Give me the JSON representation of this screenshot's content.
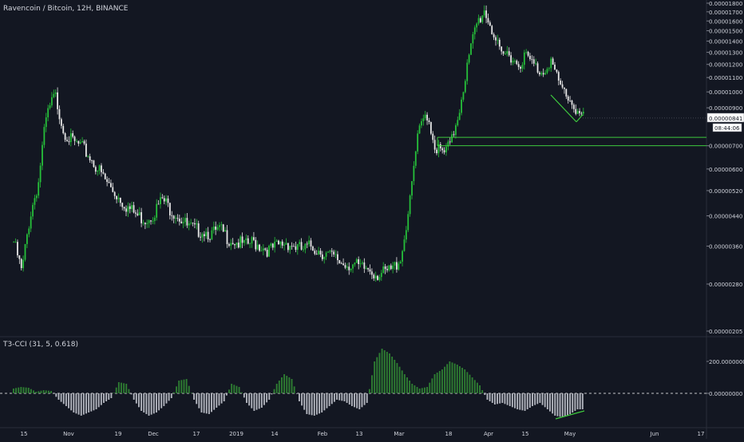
{
  "header": {
    "title": "Ravencoin / Bitcoin, 12H, BINANCE"
  },
  "indicator": {
    "title": "T3-CCI (31, 5, 0.618)"
  },
  "colors": {
    "background": "#131722",
    "up": "#26c13a",
    "down": "#e8e8e8",
    "line": "#3ec93e",
    "axis_text": "#d1d4dc",
    "hist_up": "#2e7d32",
    "hist_down": "#b2b5be"
  },
  "chart_data": [
    {
      "type": "candlestick",
      "title": "Ravencoin / Bitcoin, 12H, BINANCE",
      "x_ticks": [
        "15",
        "Nov",
        "19",
        "Dec",
        "17",
        "2019",
        "14",
        "Feb",
        "13",
        "Mar",
        "18",
        "Apr",
        "15",
        "May",
        "Jun",
        "17"
      ],
      "y_ticks": [
        "0.00001800",
        "0.00001700",
        "0.00001600",
        "0.00001500",
        "0.00001400",
        "0.00001300",
        "0.00001200",
        "0.00001100",
        "0.00001000",
        "0.00000900",
        "0.00000700",
        "0.00000600",
        "0.00000520",
        "0.00000440",
        "0.00000360",
        "0.00000280",
        "0.00000205"
      ],
      "ylim": [
        2.05e-06,
        1.8e-05
      ],
      "scale": "log",
      "close_series": [
        3.7e-06,
        3e-06,
        4.4e-06,
        5.5e-06,
        8.5e-06,
        9.8e-06,
        7.8e-06,
        7.2e-06,
        7e-06,
        6.6e-06,
        6.1e-06,
        5.6e-06,
        5.2e-06,
        4.9e-06,
        4.6e-06,
        4.4e-06,
        4.3e-06,
        4.5e-06,
        4.9e-06,
        4.6e-06,
        4.4e-06,
        4.1e-06,
        4e-06,
        4e-06,
        3.9e-06,
        4e-06,
        3.8e-06,
        3.7e-06,
        3.6e-06,
        3.7e-06,
        3.6e-06,
        3.5e-06,
        3.6e-06,
        3.7e-06,
        3.6e-06,
        3.5e-06,
        3.6e-06,
        3.5e-06,
        3.4e-06,
        3.3e-06,
        3.2e-06,
        3.2e-06,
        3.1e-06,
        3.1e-06,
        3e-06,
        3e-06,
        3.1e-06,
        3.4e-06,
        4.8e-06,
        7.5e-06,
        8.8e-06,
        7e-06,
        6.6e-06,
        7.1e-06,
        9e-06,
        1.2e-05,
        1.55e-05,
        1.72e-05,
        1.5e-05,
        1.25e-05,
        1.3e-05,
        1.2e-05,
        1.27e-05,
        1.19e-05,
        1.14e-05,
        1.24e-05,
        1.05e-05,
        9.8e-06,
        9e-06,
        8.4e-06
      ],
      "price_label": "0.00000841",
      "countdown_label": "08:44:06",
      "support_zone": [
        7e-06,
        7.4e-06
      ]
    },
    {
      "type": "bar",
      "title": "T3-CCI (31, 5, 0.618)",
      "y_ticks": [
        "200.00000000",
        "0.00000000"
      ],
      "zero_line": true,
      "values": [
        30,
        40,
        35,
        10,
        20,
        15,
        -40,
        -80,
        -120,
        -140,
        -120,
        -100,
        -60,
        -30,
        70,
        60,
        -40,
        -110,
        -140,
        -120,
        -80,
        -30,
        80,
        90,
        -40,
        -120,
        -130,
        -90,
        -50,
        60,
        40,
        -60,
        -110,
        -90,
        -40,
        60,
        120,
        90,
        -50,
        -130,
        -140,
        -120,
        -80,
        -40,
        -50,
        -80,
        -100,
        -60,
        200,
        280,
        250,
        190,
        120,
        60,
        30,
        40,
        120,
        150,
        200,
        180,
        150,
        100,
        50,
        -40,
        -70,
        -60,
        -80,
        -100,
        -110,
        -80,
        -60,
        -100,
        -140,
        -150,
        -130,
        -100
      ]
    }
  ]
}
